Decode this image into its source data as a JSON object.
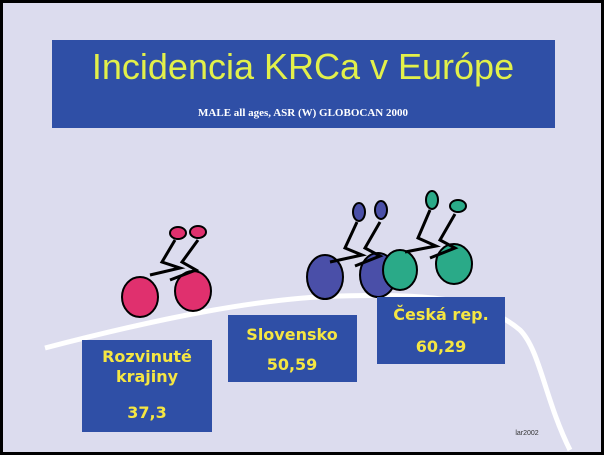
{
  "header": {
    "title": "Incidencia KRCa v Európe",
    "subtitle": "MALE  all ages,  ASR (W) GLOBOCAN 2000"
  },
  "boxes": [
    {
      "label": "Rozvinuté krajiny",
      "value": "37,3"
    },
    {
      "label": "Slovensko",
      "value": "50,59"
    },
    {
      "label": "Česká rep.",
      "value": "60,29"
    }
  ],
  "footer": "lar2002"
}
